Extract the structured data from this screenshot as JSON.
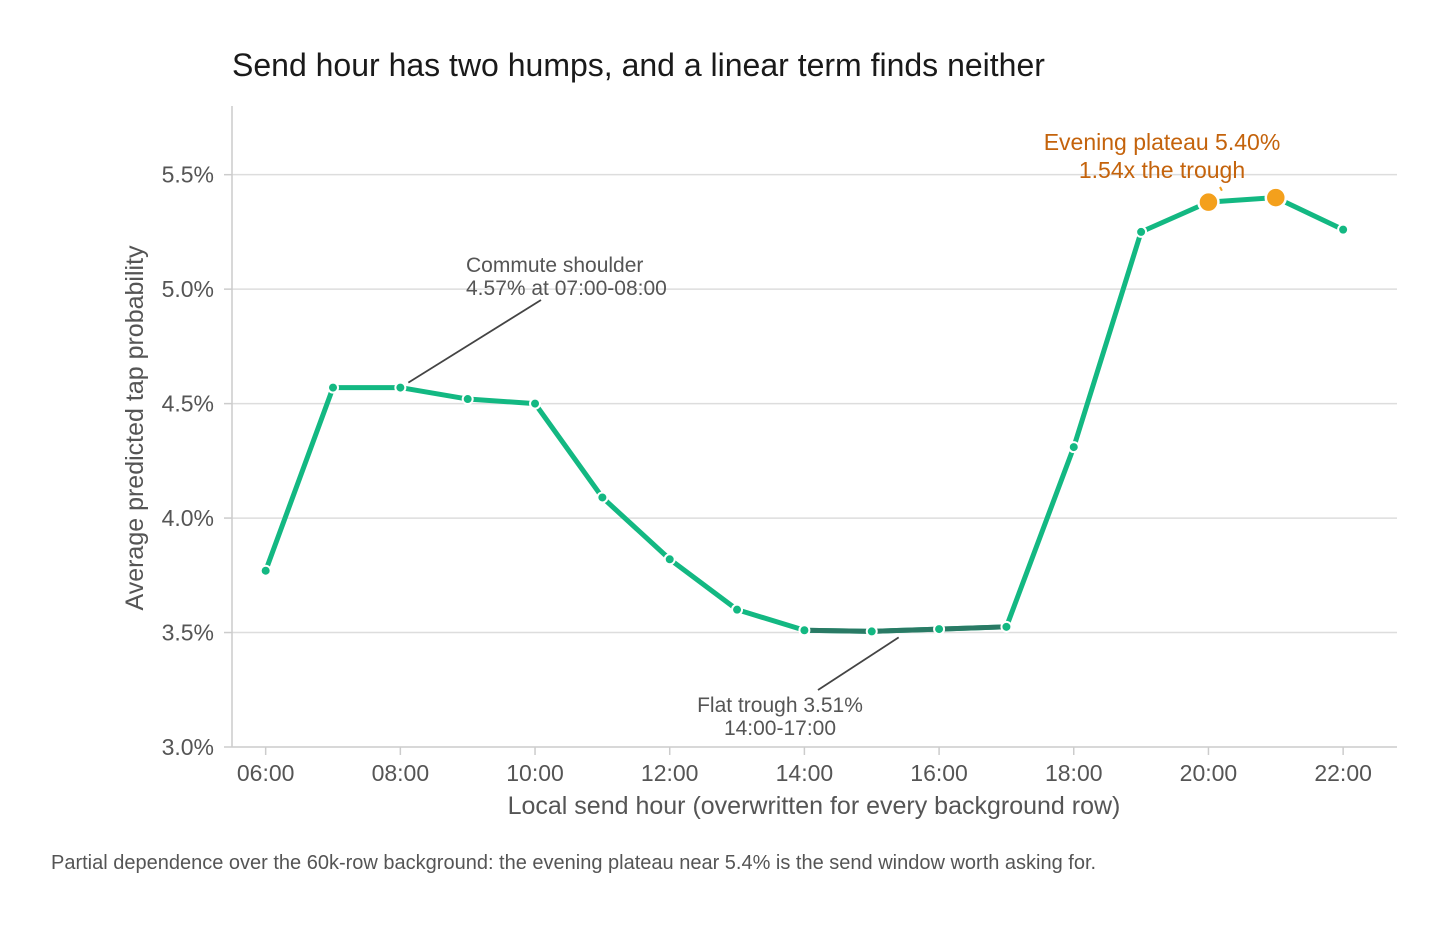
{
  "chart_data": {
    "type": "line",
    "title": "Send hour has two humps, and a linear term finds neither",
    "xlabel": "Local send hour (overwritten for every background row)",
    "ylabel": "Average predicted tap probability",
    "x": [
      6,
      7,
      8,
      9,
      10,
      11,
      12,
      13,
      14,
      15,
      16,
      17,
      18,
      19,
      20,
      21,
      22
    ],
    "values": [
      3.77,
      4.57,
      4.57,
      4.52,
      4.5,
      4.09,
      3.82,
      3.6,
      3.51,
      3.505,
      3.515,
      3.525,
      4.31,
      5.25,
      5.38,
      5.4,
      5.26
    ],
    "xlim": [
      5.5,
      22.8
    ],
    "ylim": [
      3.0,
      5.8
    ],
    "x_ticks": [
      6,
      8,
      10,
      12,
      14,
      16,
      18,
      20,
      22
    ],
    "x_tick_labels": [
      "06:00",
      "08:00",
      "10:00",
      "12:00",
      "14:00",
      "16:00",
      "18:00",
      "20:00",
      "22:00"
    ],
    "y_ticks": [
      3.0,
      3.5,
      4.0,
      4.5,
      5.0,
      5.5
    ],
    "y_tick_labels": [
      "3.0%",
      "3.5%",
      "4.0%",
      "4.5%",
      "5.0%",
      "5.5%"
    ],
    "grid": "horizontal",
    "trough_range": [
      14,
      17
    ],
    "highlight_x": [
      20,
      21
    ],
    "colors": {
      "line": "#13b882",
      "trough": "#2a7a65",
      "highlight": "#f4a01c",
      "highlight_text": "#c4630c",
      "grid": "#dddddd",
      "axis": "#cccccc"
    },
    "annotations": [
      {
        "id": "commute",
        "lines": [
          "Commute shoulder",
          "4.57% at 07:00-08:00"
        ],
        "target_x": 8,
        "target_y": 4.57,
        "style": "normal"
      },
      {
        "id": "trough",
        "lines": [
          "Flat trough 3.51%",
          "14:00-17:00"
        ],
        "target_x": 15.4,
        "target_y": 3.505,
        "style": "normal"
      },
      {
        "id": "evening",
        "lines": [
          "Evening plateau 5.40%",
          "1.54x the trough"
        ],
        "target_x": 20.2,
        "target_y": 5.43,
        "style": "highlight"
      }
    ]
  },
  "caption": "Partial dependence over the 60k-row background: the evening plateau near 5.4% is the send window worth asking for."
}
